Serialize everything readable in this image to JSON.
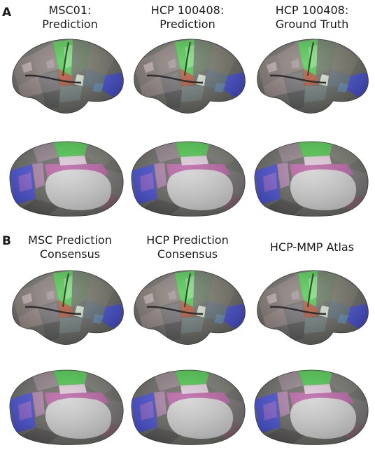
{
  "panel_a": {
    "letter": "A",
    "titles": [
      "MSC01:\nPrediction",
      "HCP 100408:\nPrediction",
      "HCP 100408:\nGround Truth"
    ]
  },
  "panel_b": {
    "letter": "B",
    "titles": [
      "MSC Prediction\nConsensus",
      "HCP Prediction\nConsensus",
      "HCP-MMP Atlas"
    ]
  },
  "colors": {
    "cortex_base": "#5f5f5a",
    "motor_green": "#3fc23f",
    "visual_blue": "#3b45d6",
    "medial_wall": "#cfcfcf",
    "cingulate_pink": "#b4579e",
    "auditory_red": "#b34a2a"
  }
}
